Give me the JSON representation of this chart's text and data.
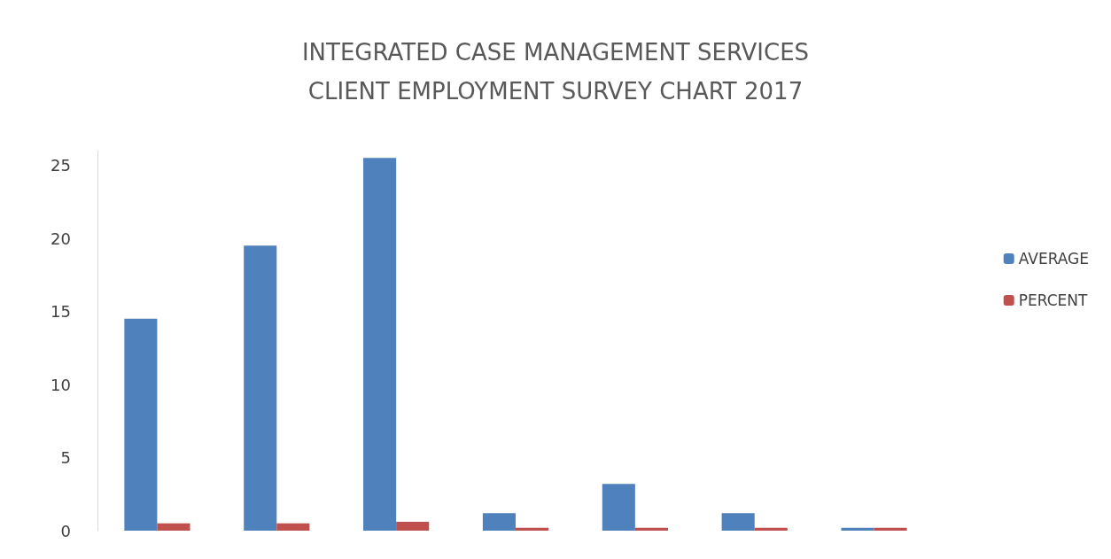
{
  "chart_data": {
    "type": "bar",
    "title": "INTEGRATED CASE MANAGEMENT SERVICES\nCLIENT EMPLOYMENT SURVEY CHART 2017",
    "categories": [
      null,
      null,
      null,
      null,
      null,
      null,
      null
    ],
    "series": [
      {
        "name": "AVERAGE",
        "color": "#4f81bd",
        "values": [
          14.5,
          19.5,
          25.5,
          1.2,
          3.2,
          1.2,
          0.2
        ]
      },
      {
        "name": "PERCENT",
        "color": "#c0504d",
        "values": [
          0.5,
          0.5,
          0.6,
          0.2,
          0.2,
          0.2,
          0.2
        ]
      }
    ],
    "ylim": [
      0,
      26
    ],
    "yticks": [
      0,
      5,
      10,
      15,
      20,
      25
    ],
    "grid": false,
    "legend": "right"
  }
}
